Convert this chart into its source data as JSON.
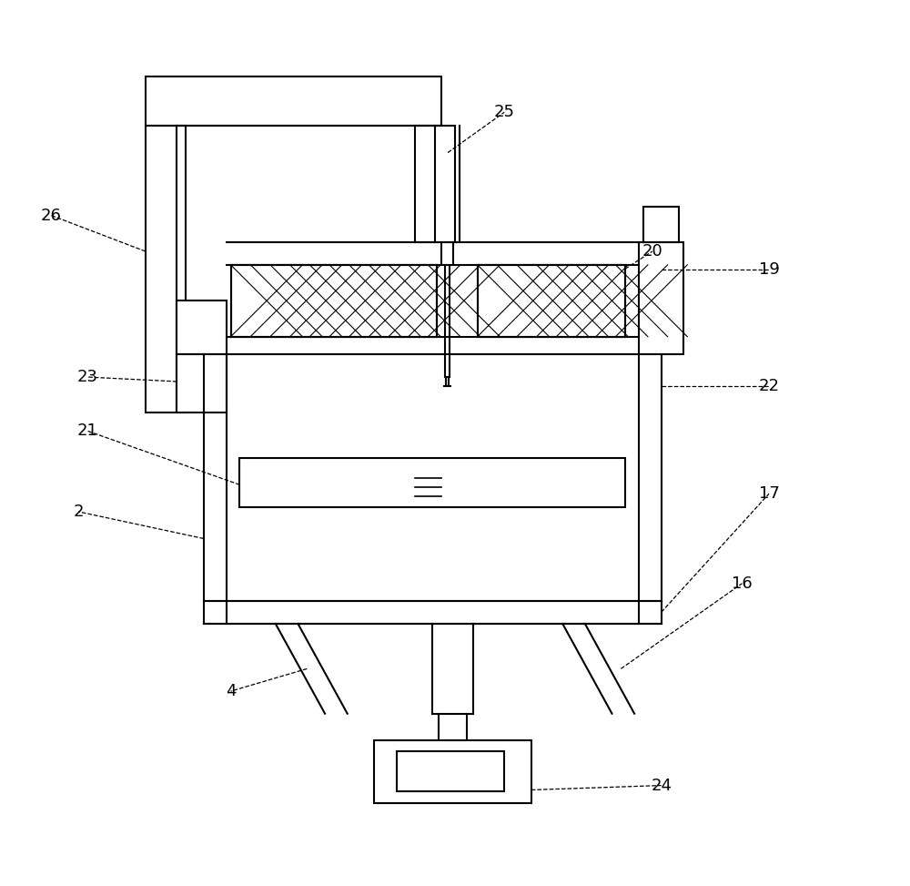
{
  "bg_color": "#ffffff",
  "line_color": "#000000",
  "lw": 1.5,
  "lw_thin": 0.8,
  "font_size": 13
}
